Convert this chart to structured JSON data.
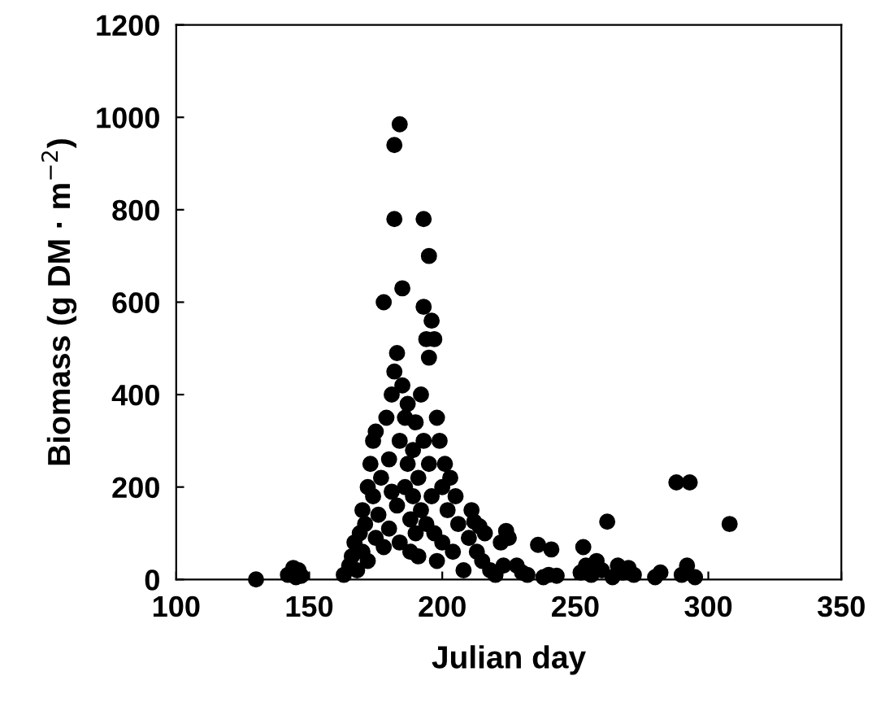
{
  "chart_data": {
    "type": "scatter",
    "xlabel": "Julian day",
    "ylabel": "Biomass (g DM · m$^{−2}$)",
    "xlim": [
      100,
      350
    ],
    "ylim": [
      0,
      1200
    ],
    "xticks": [
      100,
      150,
      200,
      250,
      300,
      350
    ],
    "yticks": [
      0,
      200,
      400,
      600,
      800,
      1000,
      1200
    ],
    "marker": "circle",
    "color": "#000000",
    "x": [
      130,
      142,
      145,
      146,
      147,
      144,
      163,
      165,
      166,
      167,
      168,
      169,
      170,
      170,
      171,
      172,
      172,
      173,
      174,
      174,
      175,
      175,
      176,
      177,
      178,
      178,
      179,
      180,
      180,
      181,
      181,
      182,
      182,
      182,
      183,
      183,
      184,
      184,
      184,
      185,
      185,
      186,
      186,
      187,
      187,
      188,
      188,
      189,
      189,
      190,
      190,
      191,
      191,
      192,
      192,
      193,
      193,
      193,
      194,
      194,
      195,
      195,
      195,
      196,
      196,
      197,
      197,
      198,
      198,
      199,
      200,
      200,
      201,
      202,
      203,
      204,
      205,
      206,
      208,
      210,
      211,
      212,
      213,
      214,
      215,
      216,
      218,
      220,
      222,
      223,
      224,
      225,
      228,
      230,
      232,
      236,
      238,
      240,
      241,
      243,
      252,
      253,
      254,
      256,
      258,
      260,
      262,
      264,
      266,
      268,
      270,
      272,
      280,
      282,
      288,
      290,
      292,
      293,
      295,
      308
    ],
    "values": [
      0,
      10,
      5,
      20,
      8,
      25,
      10,
      30,
      50,
      80,
      20,
      100,
      60,
      150,
      120,
      200,
      40,
      250,
      180,
      300,
      90,
      320,
      140,
      220,
      600,
      70,
      350,
      260,
      110,
      400,
      190,
      940,
      780,
      450,
      490,
      160,
      985,
      300,
      80,
      630,
      420,
      350,
      200,
      380,
      250,
      130,
      60,
      280,
      180,
      340,
      100,
      220,
      50,
      400,
      150,
      780,
      590,
      300,
      520,
      120,
      700,
      480,
      250,
      560,
      180,
      520,
      100,
      350,
      40,
      300,
      200,
      80,
      250,
      150,
      220,
      60,
      180,
      120,
      20,
      90,
      150,
      125,
      60,
      115,
      40,
      100,
      20,
      10,
      80,
      30,
      105,
      90,
      30,
      15,
      10,
      75,
      5,
      10,
      65,
      8,
      15,
      70,
      30,
      10,
      40,
      20,
      125,
      5,
      30,
      15,
      25,
      10,
      5,
      15,
      210,
      10,
      30,
      210,
      5,
      120
    ]
  }
}
